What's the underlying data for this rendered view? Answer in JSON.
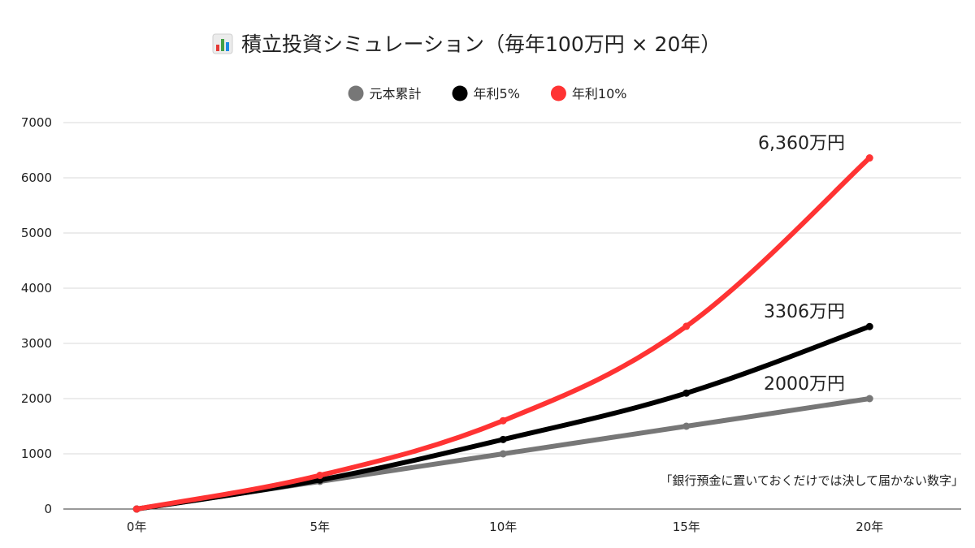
{
  "chart_data": {
    "type": "line",
    "title": "積立投資シミュレーション（毎年100万円 × 20年）",
    "title_icon": "bar-chart-icon",
    "xlabel": "",
    "ylabel": "",
    "categories": [
      "0年",
      "5年",
      "10年",
      "15年",
      "20年"
    ],
    "x": [
      0,
      5,
      10,
      15,
      20
    ],
    "xlim": [
      -2,
      22.5
    ],
    "ylim": [
      0,
      7000
    ],
    "yticks": [
      0,
      1000,
      2000,
      3000,
      4000,
      5000,
      6000,
      7000
    ],
    "grid": true,
    "legend_position": "top-center",
    "series": [
      {
        "name": "元本累計",
        "color": "#777777",
        "values": [
          0,
          500,
          1000,
          1500,
          2000
        ],
        "end_label": "2000万円"
      },
      {
        "name": "年利5%",
        "color": "#000000",
        "values": [
          0,
          525,
          1260,
          2100,
          3306
        ],
        "end_label": "3306万円"
      },
      {
        "name": "年利10%",
        "color": "#ff3333",
        "values": [
          0,
          610,
          1600,
          3310,
          6360
        ],
        "end_label": "6,360万円"
      }
    ],
    "annotation": "「銀行預金に置いておくだけでは決して届かない数字」"
  }
}
